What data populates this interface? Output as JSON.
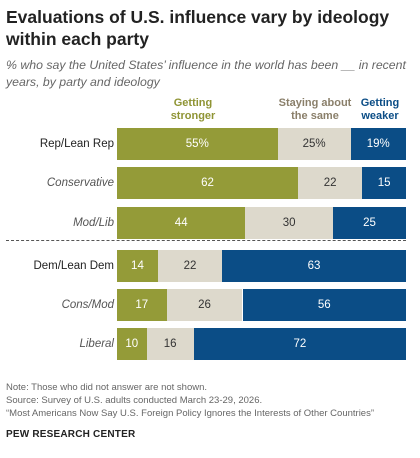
{
  "title": "Evaluations of U.S. influence vary by ideology within each party",
  "subtitle": "% who say the United States’ influence in the world has been __ in recent years, by party and ideology",
  "chart_data": {
    "type": "bar",
    "orientation": "horizontal",
    "stacked": true,
    "categories": [
      "Rep/Lean Rep",
      "Conservative",
      "Mod/Lib",
      "Dem/Lean Dem",
      "Cons/Mod",
      "Liberal"
    ],
    "series": [
      {
        "name": "Getting stronger",
        "color": "#949b38",
        "values": [
          55,
          62,
          44,
          14,
          17,
          10
        ],
        "labels": [
          "55%",
          "62",
          "44",
          "14",
          "17",
          "10"
        ]
      },
      {
        "name": "Staying about the same",
        "color": "#ddd9cc",
        "values": [
          25,
          22,
          30,
          22,
          26,
          16
        ],
        "labels": [
          "25%",
          "22",
          "30",
          "22",
          "26",
          "16"
        ]
      },
      {
        "name": "Getting weaker",
        "color": "#0b4d86",
        "values": [
          19,
          15,
          25,
          63,
          56,
          72
        ],
        "labels": [
          "19%",
          "15",
          "25",
          "63",
          "56",
          "72"
        ]
      }
    ],
    "xlim": [
      0,
      100
    ],
    "grid": false,
    "legend": "top, above bars"
  },
  "headers": {
    "stronger": "Getting stronger",
    "same": "Staying about the same",
    "weaker": "Getting weaker"
  },
  "notes": {
    "note": "Note: Those who did not answer are not shown.",
    "source": "Source: Survey of U.S. adults conducted March 23-29, 2026.",
    "report": "“Most Americans Now Say U.S. Foreign Policy Ignores the Interests of Other Countries”"
  },
  "brand": "PEW RESEARCH CENTER"
}
